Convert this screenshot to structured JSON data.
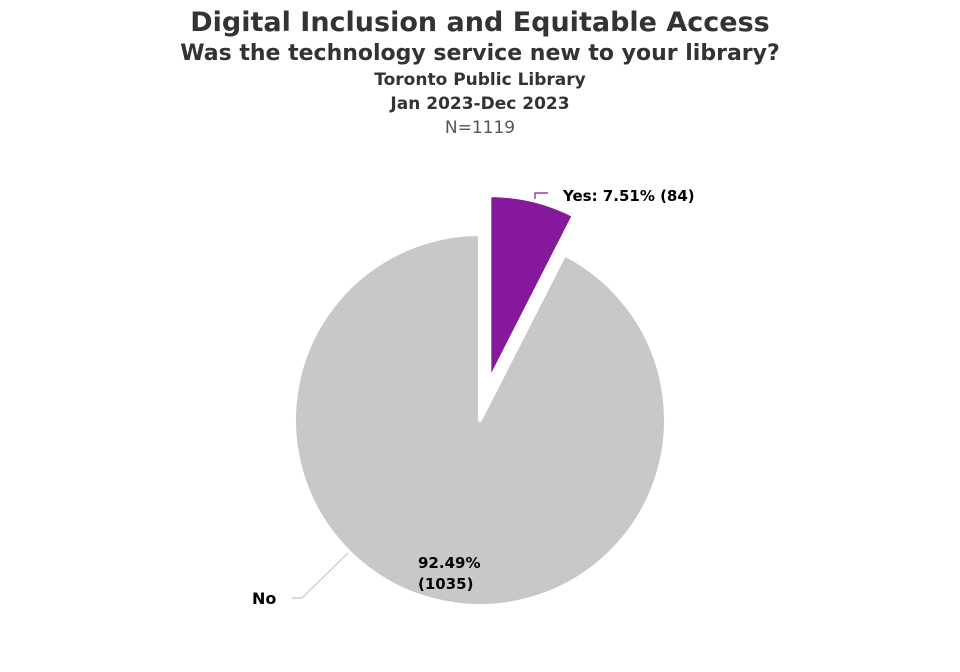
{
  "chart_data": {
    "type": "pie",
    "title": "Digital Inclusion and Equitable Access",
    "subtitle": "Was the technology service new to your library?",
    "organization": "Toronto Public Library",
    "period": "Jan 2023-Dec 2023",
    "sample_size": "N=1119",
    "slices": [
      {
        "name": "Yes",
        "percent": 7.51,
        "count": 84,
        "label": "Yes: 7.51% (84)",
        "color": "#86189c",
        "exploded": true
      },
      {
        "name": "No",
        "percent": 92.49,
        "count": 1035,
        "label_pct": "92.49%",
        "label_count": "(1035)",
        "color": "#c8c8c7",
        "exploded": false
      }
    ]
  }
}
